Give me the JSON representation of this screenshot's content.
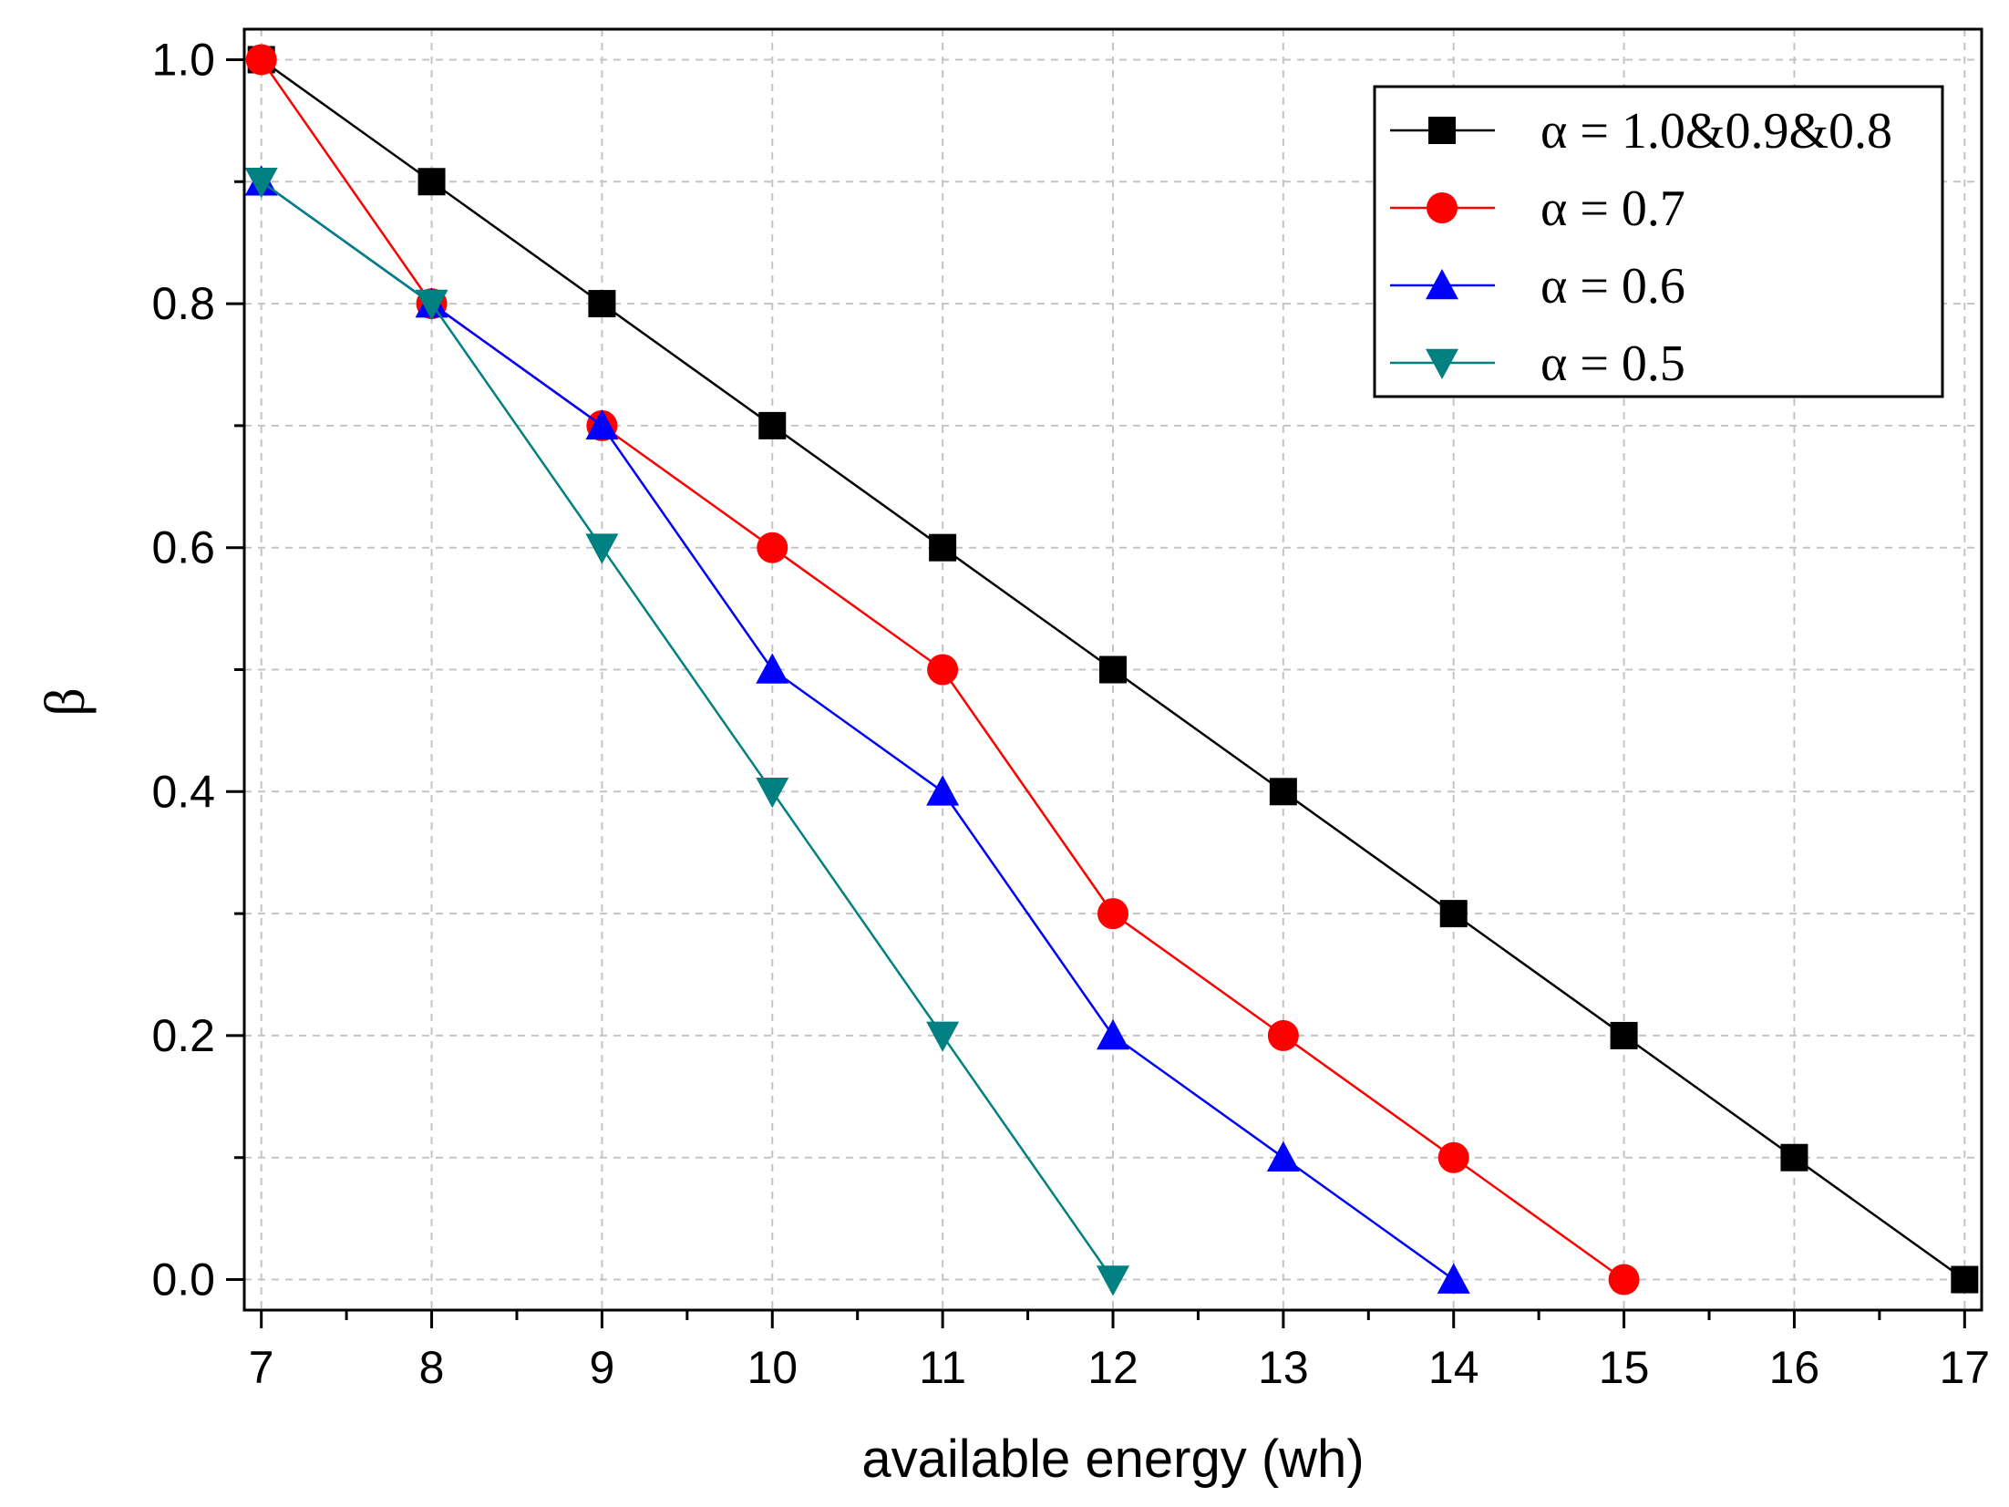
{
  "chart_data": {
    "type": "line",
    "title": "",
    "xlabel": "available energy (wh)",
    "ylabel": "β",
    "xlim": [
      6.9,
      17.1
    ],
    "ylim": [
      -0.025,
      1.025
    ],
    "x_ticks": [
      7,
      8,
      9,
      10,
      11,
      12,
      13,
      14,
      15,
      16,
      17
    ],
    "y_ticks": [
      0.0,
      0.2,
      0.4,
      0.6,
      0.8,
      1.0
    ],
    "x_tick_labels": [
      "7",
      "8",
      "9",
      "10",
      "11",
      "12",
      "13",
      "14",
      "15",
      "16",
      "17"
    ],
    "y_tick_labels": [
      "0.0",
      "0.2",
      "0.4",
      "0.6",
      "0.8",
      "1.0"
    ],
    "grid": true,
    "legend_position": "top-right",
    "series": [
      {
        "name": "α = 1.0&0.9&0.8",
        "color": "#000000",
        "marker": "square",
        "x": [
          7,
          8,
          9,
          10,
          11,
          12,
          13,
          14,
          15,
          16,
          17
        ],
        "y": [
          1.0,
          0.9,
          0.8,
          0.7,
          0.6,
          0.5,
          0.4,
          0.3,
          0.2,
          0.1,
          0.0
        ]
      },
      {
        "name": "α = 0.7",
        "color": "#ff0000",
        "marker": "circle",
        "x": [
          7,
          8,
          9,
          10,
          11,
          12,
          13,
          14,
          15
        ],
        "y": [
          1.0,
          0.8,
          0.7,
          0.6,
          0.5,
          0.3,
          0.2,
          0.1,
          0.0
        ]
      },
      {
        "name": "α = 0.6",
        "color": "#0000ff",
        "marker": "triangle-up",
        "x": [
          7,
          8,
          9,
          10,
          11,
          12,
          13,
          14
        ],
        "y": [
          0.9,
          0.8,
          0.7,
          0.5,
          0.4,
          0.2,
          0.1,
          0.0
        ]
      },
      {
        "name": "α = 0.5",
        "color": "#008080",
        "marker": "triangle-down",
        "x": [
          7,
          8,
          9,
          10,
          11,
          12
        ],
        "y": [
          0.9,
          0.8,
          0.6,
          0.4,
          0.2,
          0.0
        ]
      }
    ]
  }
}
